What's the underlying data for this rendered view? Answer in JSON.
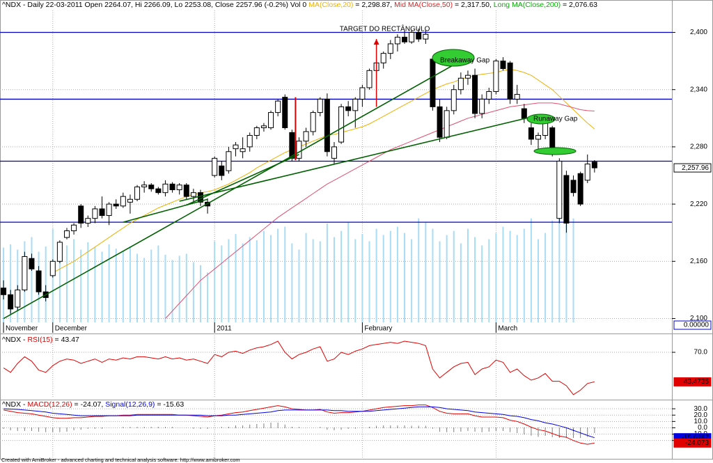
{
  "chart_data": [
    {
      "type": "candlestick",
      "header": [
        {
          "text": "^NDX - Daily 22-03-2011 Open 2264.07, Hi 2266.09, Lo 2253.08, Close 2257.96 (-0.2%) Vol 0 ",
          "color": "#000000"
        },
        {
          "text": "MA(Close,20)",
          "color": "#f0b000"
        },
        {
          "text": " = 2,298.87, ",
          "color": "#000000"
        },
        {
          "text": "Mid MA(Close,50)",
          "color": "#e02020"
        },
        {
          "text": " = 2,317.50, ",
          "color": "#000000"
        },
        {
          "text": "Long MA(Close,200)",
          "color": "#00b000"
        },
        {
          "text": " = 2,076.63",
          "color": "#000000"
        }
      ],
      "xlim": [
        -0.5,
        95
      ],
      "xticks": [
        {
          "value": 0,
          "label": "November"
        },
        {
          "value": 7,
          "label": "December"
        },
        {
          "value": 30,
          "label": "2011"
        },
        {
          "value": 51,
          "label": "February"
        },
        {
          "value": 70,
          "label": "March"
        }
      ],
      "ylim": [
        2096,
        2423
      ],
      "yticks": [
        {
          "value": 2100,
          "label": "2,100"
        },
        {
          "value": 2160,
          "label": "2,160"
        },
        {
          "value": 2220,
          "label": "2,220"
        },
        {
          "value": 2280,
          "label": "2,280"
        },
        {
          "value": 2340,
          "label": "2,340"
        },
        {
          "value": 2400,
          "label": "2,400"
        }
      ],
      "grid": true,
      "open": [
        2132,
        2125,
        2112,
        2130,
        2163,
        2150,
        2128,
        2145,
        2160,
        2185,
        2192,
        2218,
        2200,
        2205,
        2215,
        2208,
        2220,
        2218,
        2222,
        2225,
        2238,
        2240,
        2236,
        2232,
        2241,
        2235,
        2240,
        2228,
        2232,
        2222,
        2250,
        2260,
        2255,
        2278,
        2275,
        2280,
        2292,
        2300,
        2300,
        2316,
        2332,
        2295,
        2268,
        2286,
        2296,
        2316,
        2330,
        2268,
        2285,
        2322,
        2318,
        2330,
        2342,
        2360,
        2368,
        2378,
        2388,
        2395,
        2390,
        2400,
        2393,
        2372,
        2322,
        2290,
        2318,
        2340,
        2352,
        2355,
        2315,
        2330,
        2338,
        2370,
        2368,
        2330,
        2320,
        2300,
        2288,
        2292,
        2300,
        2205,
        2250,
        2245,
        2252,
        2245,
        2264.07
      ],
      "high": [
        2140,
        2130,
        2135,
        2170,
        2168,
        2155,
        2135,
        2162,
        2182,
        2195,
        2200,
        2220,
        2208,
        2218,
        2228,
        2222,
        2225,
        2232,
        2230,
        2240,
        2244,
        2242,
        2238,
        2245,
        2243,
        2242,
        2242,
        2236,
        2235,
        2226,
        2270,
        2265,
        2280,
        2285,
        2290,
        2295,
        2302,
        2305,
        2318,
        2330,
        2335,
        2298,
        2290,
        2300,
        2318,
        2332,
        2336,
        2285,
        2325,
        2328,
        2332,
        2345,
        2362,
        2372,
        2380,
        2392,
        2398,
        2402,
        2402,
        2404,
        2402,
        2375,
        2330,
        2322,
        2345,
        2358,
        2360,
        2362,
        2335,
        2342,
        2372,
        2374,
        2370,
        2345,
        2325,
        2305,
        2295,
        2310,
        2302,
        2268,
        2255,
        2250,
        2254,
        2272,
        2266.09
      ],
      "low": [
        2120,
        2105,
        2108,
        2128,
        2150,
        2125,
        2118,
        2143,
        2158,
        2183,
        2188,
        2195,
        2196,
        2200,
        2205,
        2198,
        2215,
        2216,
        2210,
        2223,
        2232,
        2233,
        2230,
        2228,
        2232,
        2230,
        2225,
        2222,
        2218,
        2210,
        2248,
        2245,
        2252,
        2270,
        2268,
        2275,
        2288,
        2296,
        2298,
        2312,
        2298,
        2265,
        2265,
        2280,
        2292,
        2312,
        2270,
        2262,
        2283,
        2312,
        2300,
        2322,
        2340,
        2352,
        2362,
        2372,
        2380,
        2388,
        2388,
        2390,
        2388,
        2318,
        2285,
        2288,
        2314,
        2335,
        2345,
        2310,
        2310,
        2325,
        2335,
        2360,
        2325,
        2325,
        2305,
        2282,
        2278,
        2288,
        2270,
        2200,
        2190,
        2228,
        2218,
        2242,
        2253.08
      ],
      "close": [
        2125,
        2110,
        2130,
        2165,
        2152,
        2128,
        2122,
        2160,
        2180,
        2192,
        2198,
        2200,
        2205,
        2215,
        2208,
        2220,
        2218,
        2228,
        2225,
        2238,
        2240,
        2236,
        2232,
        2241,
        2235,
        2240,
        2228,
        2232,
        2222,
        2218,
        2268,
        2250,
        2275,
        2282,
        2278,
        2292,
        2300,
        2302,
        2316,
        2328,
        2300,
        2268,
        2286,
        2296,
        2316,
        2330,
        2275,
        2280,
        2322,
        2318,
        2330,
        2342,
        2360,
        2368,
        2378,
        2388,
        2395,
        2390,
        2400,
        2393,
        2398,
        2322,
        2290,
        2318,
        2340,
        2352,
        2355,
        2315,
        2330,
        2338,
        2370,
        2362,
        2330,
        2335,
        2310,
        2288,
        2292,
        2306,
        2275,
        2265,
        2200,
        2232,
        2220,
        2262,
        2257.96
      ],
      "series": [
        {
          "color": "#f0b000",
          "values": [
            null,
            null,
            null,
            null,
            null,
            null,
            null,
            2148,
            2152,
            2156,
            2160,
            2165,
            2170,
            2175,
            2180,
            2185,
            2190,
            2195,
            2200,
            2204,
            2208,
            2212,
            2216,
            2219,
            2222,
            2225,
            2228,
            2230,
            2232,
            2233,
            2235,
            2238,
            2241,
            2245,
            2249,
            2253,
            2258,
            2262,
            2266,
            2270,
            2274,
            2277,
            2280,
            2283,
            2286,
            2289,
            2292,
            2293,
            2295,
            2297,
            2299,
            2301,
            2304,
            2308,
            2312,
            2316,
            2320,
            2324,
            2328,
            2332,
            2336,
            2340,
            2343,
            2346,
            2348,
            2351,
            2353,
            2355,
            2356,
            2357,
            2358,
            2360,
            2361,
            2360,
            2358,
            2355,
            2350,
            2345,
            2340,
            2333,
            2326,
            2319,
            2312,
            2305,
            2298.87
          ]
        },
        {
          "color": "#e05070",
          "values": [
            null,
            null,
            null,
            null,
            null,
            null,
            null,
            null,
            null,
            null,
            null,
            null,
            null,
            null,
            null,
            null,
            null,
            null,
            null,
            null,
            null,
            null,
            null,
            2100,
            2108,
            2116,
            2124,
            2132,
            2140,
            2146,
            2152,
            2158,
            2164,
            2170,
            2176,
            2182,
            2188,
            2194,
            2200,
            2206,
            2211,
            2216,
            2221,
            2226,
            2231,
            2236,
            2241,
            2245,
            2249,
            2253,
            2257,
            2261,
            2265,
            2269,
            2273,
            2277,
            2280,
            2283,
            2286,
            2289,
            2292,
            2295,
            2298,
            2301,
            2304,
            2307,
            2310,
            2312,
            2314,
            2316,
            2318,
            2320,
            2322,
            2323,
            2324,
            2325,
            2326,
            2326,
            2326,
            2325,
            2323,
            2321,
            2319,
            2318,
            2317.5
          ]
        }
      ],
      "volume": {
        "color": "#a9dcf5",
        "vlim": [
          0,
          300
        ],
        "values": [
          72,
          75,
          70,
          78,
          82,
          68,
          73,
          90,
          76,
          74,
          80,
          70,
          77,
          72,
          68,
          75,
          71,
          69,
          73,
          66,
          62,
          70,
          74,
          65,
          60,
          64,
          66,
          58,
          55,
          48,
          78,
          74,
          80,
          85,
          76,
          82,
          79,
          88,
          84,
          90,
          92,
          76,
          70,
          86,
          80,
          78,
          95,
          82,
          88,
          96,
          80,
          85,
          78,
          90,
          84,
          88,
          92,
          86,
          80,
          100,
          96,
          90,
          78,
          84,
          88,
          76,
          90,
          82,
          74,
          80,
          86,
          92,
          88,
          84,
          90,
          100,
          80,
          86,
          98,
          150,
          140,
          100,
          0,
          0,
          0
        ]
      },
      "hlines": {
        "color": "#0000c0",
        "values": [
          2400,
          2330,
          2265,
          2201
        ]
      },
      "trendlines": {
        "color": "#006000",
        "lines": [
          {
            "x": [
              0,
              64
            ],
            "y": [
              2100,
              2366
            ]
          },
          {
            "x": [
              17,
              29
            ],
            "y": [
              2201,
              2225
            ]
          },
          {
            "x": [
              26,
              42
            ],
            "y": [
              2219,
              2272
            ]
          },
          {
            "x": [
              25,
              76
            ],
            "y": [
              2223,
              2313
            ]
          }
        ]
      },
      "red_line": {
        "x": 41.5,
        "y": [
          2266,
          2332
        ]
      },
      "arrow": {
        "x": 53,
        "y": [
          2322,
          2393
        ]
      },
      "annotations": {
        "target": "TARGET DO RECTÂNGULO",
        "breakaway": "Breakaway Gap",
        "runaway": "Runaway Gap"
      },
      "last_label": "2,257.96",
      "volume_label": "0.00000"
    },
    {
      "type": "line",
      "header": [
        {
          "text": "^NDX - ",
          "color": "#000000"
        },
        {
          "text": "RSI(15)",
          "color": "#e00000"
        },
        {
          "text": " = 43.47",
          "color": "#000000"
        }
      ],
      "ylim": [
        30,
        85
      ],
      "yticks": [
        {
          "value": 70,
          "label": "70.0"
        }
      ],
      "series": [
        {
          "color": "#e00000",
          "values": [
            56,
            52,
            60,
            66,
            62,
            54,
            52,
            58,
            62,
            64,
            63,
            60,
            62,
            64,
            61,
            64,
            63,
            65,
            64,
            66,
            66,
            65,
            64,
            66,
            64,
            65,
            63,
            64,
            62,
            60,
            68,
            66,
            70,
            71,
            69,
            72,
            74,
            75,
            77,
            80,
            70,
            64,
            68,
            70,
            73,
            75,
            62,
            64,
            70,
            68,
            71,
            73,
            76,
            77,
            78,
            79,
            78,
            80,
            79,
            78,
            76,
            55,
            47,
            52,
            57,
            60,
            61,
            50,
            55,
            57,
            63,
            61,
            52,
            55,
            49,
            45,
            47,
            51,
            44,
            44,
            40,
            32,
            36,
            42,
            43.47
          ],
          "value_label": "43.4735"
        }
      ]
    },
    {
      "type": "macd",
      "header": [
        {
          "text": "^NDX - ",
          "color": "#000000"
        },
        {
          "text": "MACD(12,26)",
          "color": "#e00000"
        },
        {
          "text": " = -24.07, ",
          "color": "#000000"
        },
        {
          "text": "Signal(12,26,9)",
          "color": "#0000e0"
        },
        {
          "text": " = -15.63",
          "color": "#000000"
        }
      ],
      "ylim": [
        -50,
        40
      ],
      "yticks": [
        {
          "value": 30,
          "label": "30.0"
        },
        {
          "value": 20,
          "label": "20.0"
        },
        {
          "value": 10,
          "label": "10.0"
        },
        {
          "value": 0,
          "label": "0.0"
        },
        {
          "value": -10,
          "label": "-10.0"
        },
        {
          "value": -20,
          "label": "-20.0"
        }
      ],
      "series": [
        {
          "color": "#e00000",
          "values": [
            28,
            26,
            24,
            23,
            22,
            20,
            18,
            16,
            15,
            15,
            16,
            16,
            17,
            18,
            18,
            19,
            19,
            20,
            20,
            21,
            21,
            21,
            21,
            21,
            21,
            20,
            20,
            19,
            18,
            17,
            19,
            20,
            22,
            24,
            25,
            27,
            29,
            31,
            33,
            35,
            33,
            30,
            29,
            28,
            28,
            29,
            25,
            23,
            24,
            24,
            25,
            26,
            28,
            30,
            32,
            33,
            34,
            35,
            35,
            36,
            36,
            32,
            26,
            23,
            22,
            22,
            22,
            19,
            17,
            17,
            17,
            16,
            12,
            10,
            6,
            1,
            -3,
            -5,
            -9,
            -13,
            -15,
            -20,
            -24,
            -26,
            -24.07
          ],
          "value_label": "-24.073"
        },
        {
          "color": "#0000e0",
          "values": [
            30,
            29.5,
            29,
            28,
            27,
            26,
            25,
            23,
            22,
            21,
            20,
            19,
            19,
            19,
            19,
            19,
            19,
            19,
            19,
            20,
            20,
            20,
            20,
            20,
            20,
            20,
            20,
            20,
            20,
            19,
            19,
            19,
            20,
            20,
            21,
            22,
            23,
            24,
            25,
            27,
            28,
            28,
            28,
            28,
            28,
            28,
            28,
            27,
            27,
            26,
            26,
            26,
            26,
            27,
            28,
            29,
            30,
            31,
            32,
            33,
            33,
            33,
            32,
            30,
            29,
            28,
            27,
            25,
            24,
            23,
            22,
            21,
            19,
            18,
            16,
            13,
            11,
            8,
            6,
            3,
            0,
            -4,
            -8,
            -12,
            -15.63
          ],
          "value_label": "-15.6287"
        }
      ]
    }
  ],
  "footer": "Created with AmiBroker - advanced charting and technical analysis software. http://www.amibroker.com"
}
